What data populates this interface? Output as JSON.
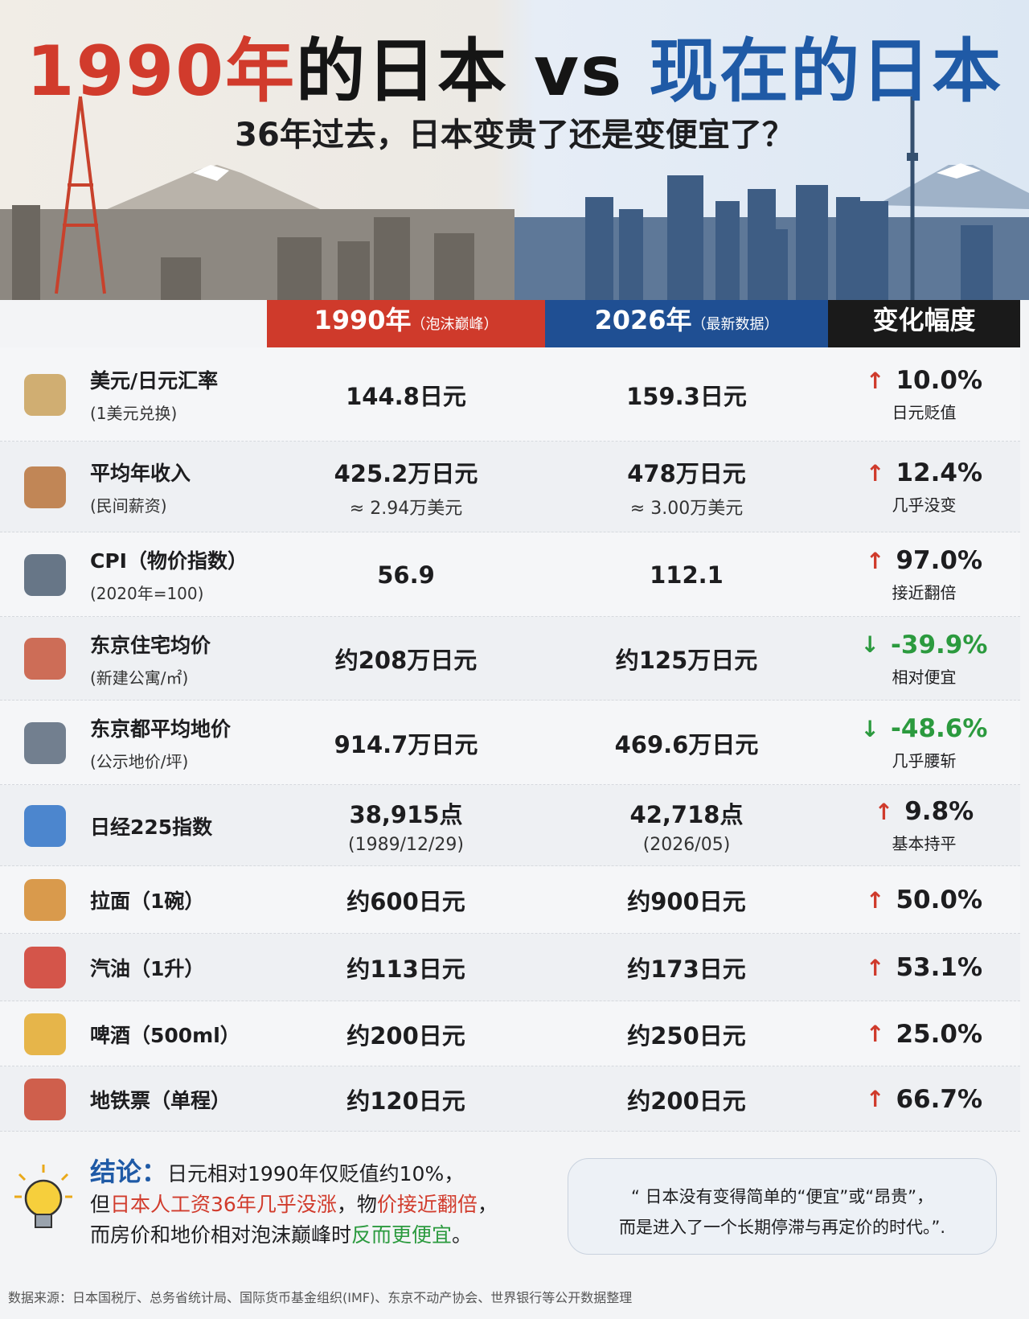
{
  "header": {
    "title": [
      "1990年",
      "的日本 vs ",
      "现在的日本"
    ],
    "subtitle": "36年过去，日本变贵了还是变便宜了？"
  },
  "table": {
    "columns": [
      {
        "main": "1990年",
        "note": "（泡沫巅峰）"
      },
      {
        "main": "2026年",
        "note": "（最新数据）"
      },
      {
        "main": "变化幅度"
      }
    ],
    "rows": [
      {
        "label": "美元/日元汇率",
        "sublabel": "(1美元兑换)",
        "v1990": [
          "144.8日元"
        ],
        "v2026": [
          "159.3日元"
        ],
        "change": "10.0%",
        "note": "日元贬值"
      },
      {
        "label": "平均年收入",
        "sublabel": "(民间薪资)",
        "v1990": [
          "425.2万日元",
          "≈ 2.94万美元"
        ],
        "v2026": [
          "478万日元",
          "≈ 3.00万美元"
        ],
        "change": "12.4%",
        "note": "几乎没变"
      },
      {
        "label": "CPI（物价指数）",
        "sublabel": "(2020年=100)",
        "v1990": [
          "56.9"
        ],
        "v2026": [
          "112.1"
        ],
        "change": "97.0%",
        "note": "接近翻倍"
      },
      {
        "label": "东京住宅均价",
        "sublabel": "(新建公寓/㎡)",
        "v1990": [
          "约208万日元"
        ],
        "v2026": [
          "约125万日元"
        ],
        "change": "-39.9%",
        "note": "相对便宜"
      },
      {
        "label": "东京都平均地价",
        "sublabel": "(公示地价/坪)",
        "v1990": [
          "914.7万日元"
        ],
        "v2026": [
          "469.6万日元"
        ],
        "change": "-48.6%",
        "note": "几乎腰斩"
      },
      {
        "label": "日经225指数",
        "v1990": [
          "38,915点",
          "(1989/12/29)"
        ],
        "v2026": [
          "42,718点",
          "(2026/05)"
        ],
        "change": "9.8%",
        "note": "基本持平"
      },
      {
        "label": "拉面（1碗）",
        "v1990": [
          "约600日元"
        ],
        "v2026": [
          "约900日元"
        ],
        "change": "50.0%"
      },
      {
        "label": "汽油（1升）",
        "v1990": [
          "约113日元"
        ],
        "v2026": [
          "约173日元"
        ],
        "change": "53.1%"
      },
      {
        "label": "啤酒（500ml）",
        "v1990": [
          "约200日元"
        ],
        "v2026": [
          "约250日元"
        ],
        "change": "25.0%"
      },
      {
        "label": "地铁票（单程）",
        "v1990": [
          "约120日元"
        ],
        "v2026": [
          "约200日元"
        ],
        "change": "66.7%"
      }
    ]
  },
  "conclusion": {
    "heading": "结论：",
    "line1": "日元相对1990年仅贬值约10%，",
    "line2": [
      "但",
      "日本人工资36年几乎没涨",
      "，物",
      "价接近翻倍",
      "，"
    ],
    "line3": [
      "而房价和地价相对泡沫巅峰时",
      "反而更便宜",
      "。"
    ]
  },
  "quote": [
    "“ 日本没有变得简单的“便宜”或“昂贵”，",
    "而是进入了一个长期停滞与再定价的时代。”."
  ],
  "source": "数据来源：日本国税厅、总务省统计局、国际货币基金组织(IMF)、东京不动产协会、世界银行等公开数据整理"
}
